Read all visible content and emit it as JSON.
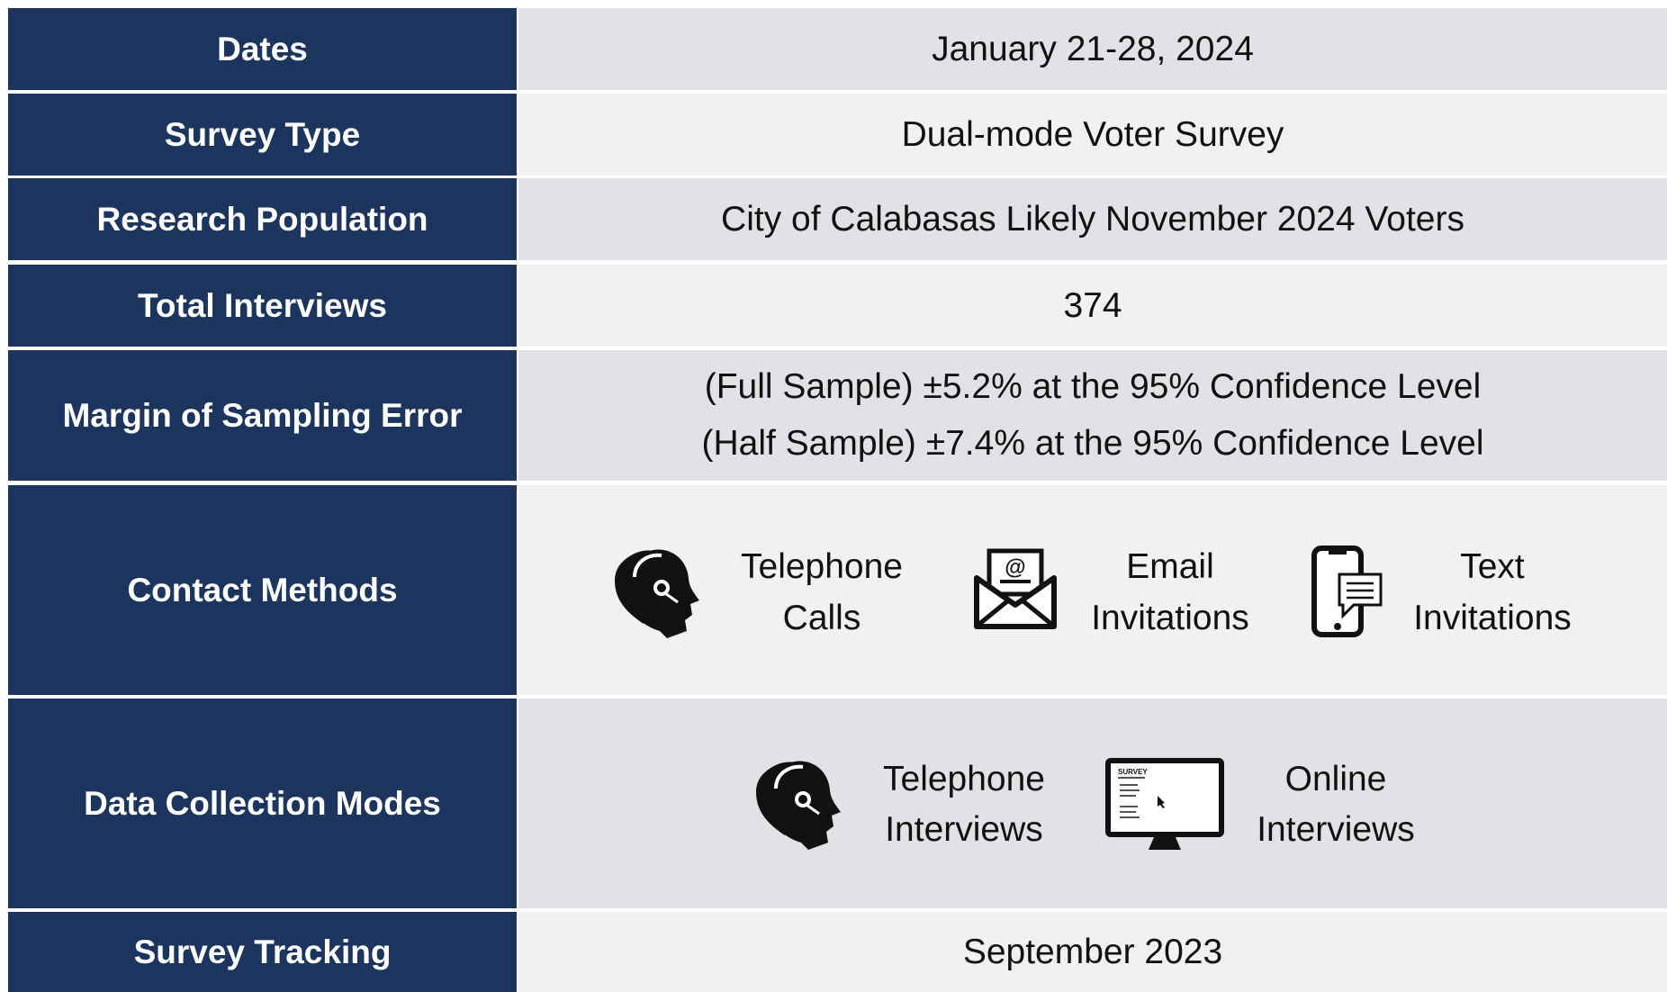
{
  "table": {
    "rows": [
      {
        "label": "Dates",
        "value": [
          "January 21-28, 2024"
        ]
      },
      {
        "label": "Survey Type",
        "value": [
          "Dual-mode Voter Survey"
        ]
      },
      {
        "label": "Research Population",
        "value": [
          "City of Calabasas Likely November 2024 Voters"
        ]
      },
      {
        "label": "Total Interviews",
        "value": [
          "374"
        ]
      },
      {
        "label": "Margin of Sampling Error",
        "value": [
          "(Full Sample) ±5.2% at the 95% Confidence Level",
          "(Half Sample) ±7.4% at the 95% Confidence Level"
        ]
      },
      {
        "label": "Contact Methods",
        "items": [
          [
            "Telephone",
            "Calls"
          ],
          [
            "Email",
            "Invitations"
          ],
          [
            "Text",
            "Invitations"
          ]
        ]
      },
      {
        "label": "Data Collection Modes",
        "items": [
          [
            "Telephone",
            "Interviews"
          ],
          [
            "Online",
            "Interviews"
          ]
        ]
      },
      {
        "label": "Survey Tracking",
        "value": [
          "September 2023"
        ]
      }
    ]
  }
}
